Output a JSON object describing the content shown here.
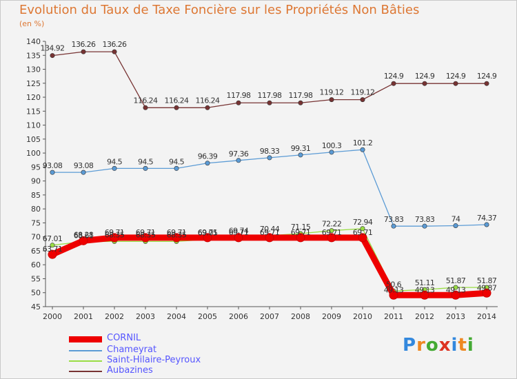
{
  "header": {
    "title": "Evolution du Taux de Taxe Foncière sur les Propriétés Non Bâties",
    "unit": "(en %)"
  },
  "logo": {
    "text": "Proxiti"
  },
  "chart_data": {
    "type": "line",
    "title": "Evolution du Taux de Taxe Foncière sur les Propriétés Non Bâties",
    "ylabel": "(en %)",
    "xlabel": "",
    "ylim": [
      45,
      140
    ],
    "yticks": [
      45,
      50,
      55,
      60,
      65,
      70,
      75,
      80,
      85,
      90,
      95,
      100,
      105,
      110,
      115,
      120,
      125,
      130,
      135,
      140
    ],
    "grid": false,
    "legend_position": "bottom-left",
    "categories": [
      "2000",
      "2001",
      "2002",
      "2003",
      "2004",
      "2005",
      "2006",
      "2007",
      "2008",
      "2009",
      "2010",
      "2011",
      "2012",
      "2013",
      "2014"
    ],
    "series": [
      {
        "name": "CORNIL",
        "color": "#ee0000",
        "values": [
          63.71,
          68.61,
          69.71,
          69.71,
          69.71,
          69.71,
          69.71,
          69.71,
          69.71,
          69.71,
          69.71,
          49.13,
          49.13,
          49.13,
          49.87
        ],
        "labels": [
          "63.71",
          "68.61",
          "69.71",
          "69.71",
          "69.71",
          "69.71",
          "69.71",
          "69.71",
          "69.71",
          "69.71",
          "69.71",
          "49.13",
          "49.13",
          "49.13",
          "49.87"
        ]
      },
      {
        "name": "Chameyrat",
        "color": "#5b9bd5",
        "values": [
          93.08,
          93.08,
          94.5,
          94.5,
          94.5,
          96.39,
          97.36,
          98.33,
          99.31,
          100.3,
          101.2,
          73.83,
          73.83,
          74,
          74.37
        ],
        "labels": [
          "93.08",
          "93.08",
          "94.5",
          "94.5",
          "94.5",
          "96.39",
          "97.36",
          "98.33",
          "99.31",
          "100.3",
          "101.2",
          "73.83",
          "73.83",
          "74",
          "74.37"
        ]
      },
      {
        "name": "Saint-Hilaire-Peyroux",
        "color": "#99dd44",
        "values": [
          67.01,
          68.28,
          68.35,
          68.35,
          68.35,
          69.05,
          69.74,
          70.44,
          71.15,
          72.22,
          72.94,
          50.6,
          51.11,
          51.87,
          51.87
        ],
        "labels": [
          "67.01",
          "68.28",
          "68.35",
          "68.35",
          "68.35",
          "69.05",
          "69.74",
          "70.44",
          "71.15",
          "72.22",
          "72.94",
          "50.6",
          "51.11",
          "51.87",
          "51.87"
        ]
      },
      {
        "name": "Aubazines",
        "color": "#773333",
        "values": [
          134.92,
          136.26,
          136.26,
          116.24,
          116.24,
          116.24,
          117.98,
          117.98,
          117.98,
          119.12,
          119.12,
          124.9,
          124.9,
          124.9,
          124.9
        ],
        "labels": [
          "134.92",
          "136.26",
          "136.26",
          "116.24",
          "116.24",
          "116.24",
          "117.98",
          "117.98",
          "117.98",
          "119.12",
          "119.12",
          "124.9",
          "124.9",
          "124.9",
          "124.9"
        ]
      }
    ]
  }
}
